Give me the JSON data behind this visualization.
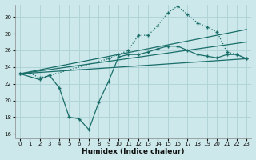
{
  "xlabel": "Humidex (Indice chaleur)",
  "ylabel": "",
  "bg_color": "#cce8ea",
  "grid_color": "#b0d4d8",
  "line_color": "#1a6e6a",
  "xlim": [
    -0.5,
    23.5
  ],
  "ylim": [
    15.5,
    31.5
  ],
  "yticks": [
    16,
    18,
    20,
    22,
    24,
    26,
    28,
    30
  ],
  "xticks": [
    0,
    1,
    2,
    3,
    4,
    5,
    6,
    7,
    8,
    9,
    10,
    11,
    12,
    13,
    14,
    15,
    16,
    17,
    18,
    19,
    20,
    21,
    22,
    23
  ],
  "curve1_x": [
    0,
    1,
    2,
    3,
    9,
    10,
    11,
    12,
    13,
    14,
    15,
    16,
    17,
    18,
    19,
    20,
    21,
    22,
    23
  ],
  "curve1_y": [
    23.2,
    23.3,
    22.7,
    23.0,
    25.0,
    25.5,
    26.0,
    27.8,
    27.8,
    29.0,
    30.5,
    31.3,
    30.3,
    29.3,
    28.8,
    28.2,
    25.8,
    25.5,
    25.0
  ],
  "curve2_x": [
    0,
    2,
    3,
    4,
    5,
    6,
    7,
    8,
    9,
    10,
    11,
    12,
    13,
    14,
    15,
    16,
    17,
    18,
    19,
    20,
    21,
    22,
    23
  ],
  "curve2_y": [
    23.2,
    22.5,
    23.0,
    21.5,
    18.0,
    17.8,
    16.5,
    19.8,
    22.3,
    25.2,
    25.5,
    25.5,
    25.8,
    26.2,
    26.5,
    26.5,
    26.0,
    25.5,
    25.3,
    25.1,
    25.5,
    25.5,
    25.0
  ],
  "line1_x": [
    0,
    23
  ],
  "line1_y": [
    23.2,
    25.0
  ],
  "line2_x": [
    0,
    23
  ],
  "line2_y": [
    23.2,
    27.0
  ],
  "line3_x": [
    0,
    23
  ],
  "line3_y": [
    23.2,
    28.5
  ]
}
